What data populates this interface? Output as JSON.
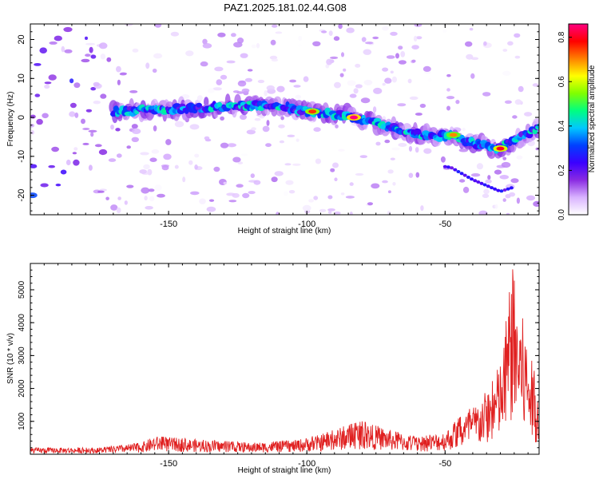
{
  "title": "PAZ1.2025.181.02.44.G08",
  "chart_data": [
    {
      "type": "heatmap",
      "xlabel": "Height of straight line (km)",
      "ylabel": "Frequency (Hz)",
      "xlim": [
        -200,
        -16
      ],
      "ylim": [
        -25,
        24
      ],
      "xticks": [
        -150,
        -100,
        -50
      ],
      "yticks": [
        20,
        10,
        0,
        -10,
        -20
      ],
      "colorbar": {
        "label": "Normalized spectral amplitude",
        "range": [
          0,
          0.86
        ],
        "ticks": [
          0.0,
          0.2,
          0.4,
          0.6,
          0.8
        ],
        "colormap": [
          "#ffffff",
          "#d9b3ff",
          "#8a2be2",
          "#3b00ff",
          "#0040ff",
          "#00c8ff",
          "#00ff80",
          "#80ff00",
          "#ffff00",
          "#ff8000",
          "#ff0000",
          "#ff0080"
        ]
      },
      "ridge": {
        "description_points": [
          {
            "x": -170,
            "y": 1.5
          },
          {
            "x": -150,
            "y": 2.0
          },
          {
            "x": -125,
            "y": 3.0
          },
          {
            "x": -110,
            "y": 3.0
          },
          {
            "x": -100,
            "y": 1.5
          },
          {
            "x": -85,
            "y": 0.5
          },
          {
            "x": -75,
            "y": -1.5
          },
          {
            "x": -65,
            "y": -3.5
          },
          {
            "x": -55,
            "y": -5.0
          },
          {
            "x": -48,
            "y": -4.5
          },
          {
            "x": -40,
            "y": -6.5
          },
          {
            "x": -30,
            "y": -8.0
          },
          {
            "x": -22,
            "y": -5.0
          },
          {
            "x": -16,
            "y": -2.5
          }
        ],
        "peak_points": [
          {
            "x": -98,
            "y": 1.5,
            "v": 0.75
          },
          {
            "x": -83,
            "y": 0.0,
            "v": 0.86
          },
          {
            "x": -47,
            "y": -4.5,
            "v": 0.7
          },
          {
            "x": -30,
            "y": -8.0,
            "v": 0.8
          }
        ]
      }
    },
    {
      "type": "line",
      "xlabel": "Height of straight line (km)",
      "ylabel": "SNR (10 * v/v)",
      "xlim": [
        -200,
        -16
      ],
      "ylim": [
        0,
        5800
      ],
      "xticks": [
        -150,
        -100,
        -50
      ],
      "yticks": [
        1000,
        2000,
        3000,
        4000,
        5000
      ],
      "color": "#e02020",
      "envelope": [
        {
          "x": -200,
          "y": 200
        },
        {
          "x": -175,
          "y": 200
        },
        {
          "x": -160,
          "y": 350
        },
        {
          "x": -155,
          "y": 550
        },
        {
          "x": -140,
          "y": 450
        },
        {
          "x": -120,
          "y": 350
        },
        {
          "x": -105,
          "y": 420
        },
        {
          "x": -95,
          "y": 600
        },
        {
          "x": -85,
          "y": 900
        },
        {
          "x": -80,
          "y": 1000
        },
        {
          "x": -70,
          "y": 750
        },
        {
          "x": -60,
          "y": 500
        },
        {
          "x": -50,
          "y": 700
        },
        {
          "x": -45,
          "y": 1100
        },
        {
          "x": -38,
          "y": 1600
        },
        {
          "x": -33,
          "y": 2200
        },
        {
          "x": -29,
          "y": 3100
        },
        {
          "x": -26,
          "y": 5800
        },
        {
          "x": -22,
          "y": 4200
        },
        {
          "x": -18,
          "y": 2600
        },
        {
          "x": -16,
          "y": 2100
        }
      ]
    }
  ]
}
